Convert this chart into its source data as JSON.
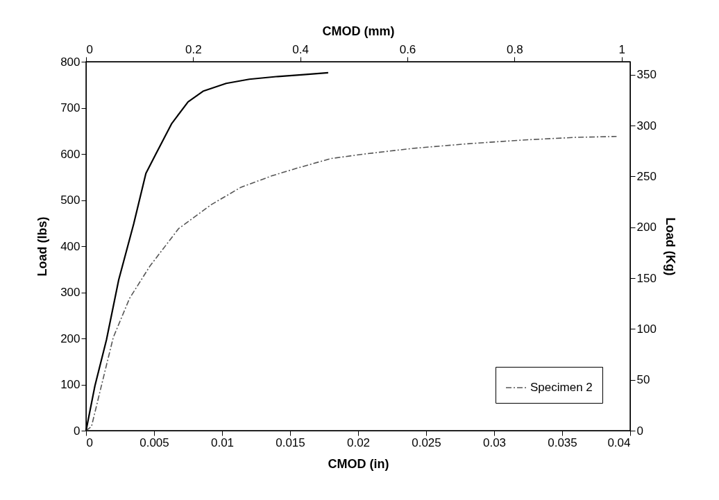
{
  "chart_data": {
    "type": "line",
    "xlabel": "CMOD  (in)",
    "ylabel": "Load  (lbs)",
    "y2label": "Load  (Kg)",
    "x2label": "CMOD  (mm)",
    "xlim": [
      0,
      0.04
    ],
    "xticks": [
      0,
      0.005,
      0.01,
      0.015,
      0.02,
      0.025,
      0.03,
      0.035,
      0.04
    ],
    "ylim": [
      0,
      800
    ],
    "yticks": [
      0,
      100,
      200,
      300,
      400,
      500,
      600,
      700,
      800
    ],
    "x2lim": [
      0,
      1.016
    ],
    "x2ticks": [
      0,
      0.2,
      0.4,
      0.6,
      0.8,
      1
    ],
    "y2lim": [
      0,
      362.87
    ],
    "y2ticks": [
      0,
      50,
      100,
      150,
      200,
      250,
      300,
      350
    ],
    "legend": "bottom right",
    "grid": false,
    "marker": "none",
    "series": [
      {
        "name": "Specimen 2",
        "color": "#555555",
        "line_style": "dashed",
        "x": [
          0,
          0.0004,
          0.001,
          0.002,
          0.0032,
          0.0047,
          0.0068,
          0.0092,
          0.0114,
          0.0137,
          0.0156,
          0.018,
          0.0205,
          0.024,
          0.028,
          0.032,
          0.036,
          0.039
        ],
        "values": [
          0,
          9,
          82,
          202,
          287,
          357,
          438,
          490,
          528,
          553,
          570,
          590,
          600,
          612,
          622,
          630,
          636,
          638
        ]
      },
      {
        "color": "#000000",
        "line_style": "solid",
        "x": [
          0,
          0.00065,
          0.0015,
          0.0024,
          0.0035,
          0.0044,
          0.0051,
          0.0063,
          0.0075,
          0.0086,
          0.0103,
          0.012,
          0.0141,
          0.016,
          0.0178
        ],
        "values": [
          0,
          97,
          197,
          327,
          448,
          558,
          598,
          666,
          713,
          736,
          753,
          762,
          768,
          772,
          776
        ]
      }
    ]
  }
}
